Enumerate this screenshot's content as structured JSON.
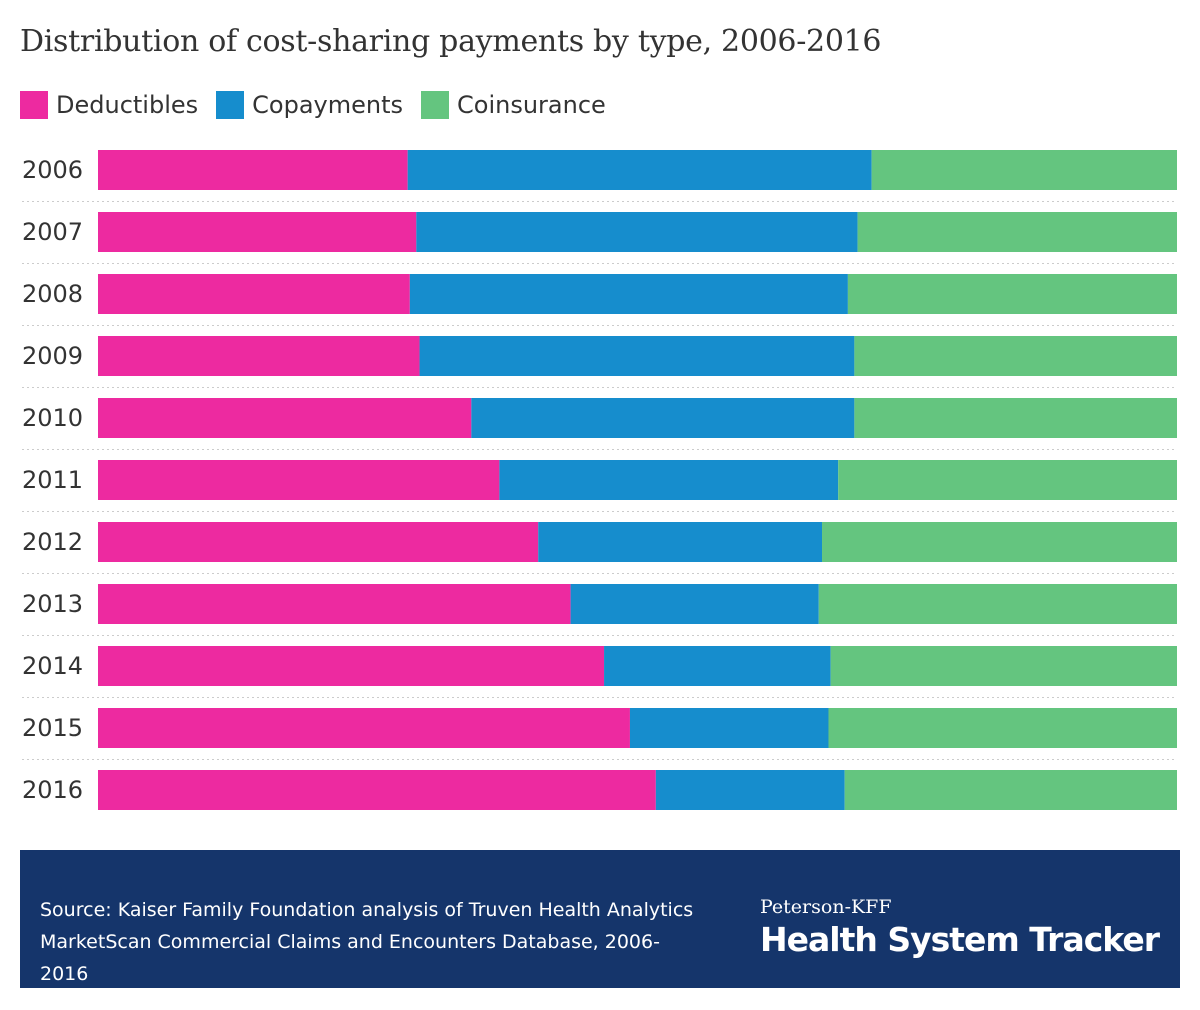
{
  "chart_data": {
    "type": "bar",
    "orientation": "horizontal",
    "stacked": true,
    "normalized": true,
    "title": "Distribution of cost-sharing payments by type, 2006-2016",
    "xlabel": "",
    "ylabel": "",
    "xlim": [
      0,
      100
    ],
    "categories": [
      "2006",
      "2007",
      "2008",
      "2009",
      "2010",
      "2011",
      "2012",
      "2013",
      "2014",
      "2015",
      "2016"
    ],
    "series": [
      {
        "name": "Deductibles",
        "color": "#ed2aa0",
        "values": [
          28.7,
          29.5,
          28.9,
          29.8,
          34.6,
          37.2,
          40.8,
          43.8,
          46.9,
          49.3,
          51.7
        ]
      },
      {
        "name": "Copayments",
        "color": "#168dcd",
        "values": [
          43.0,
          40.9,
          40.6,
          40.3,
          35.5,
          31.4,
          26.3,
          23.0,
          21.0,
          18.4,
          17.5
        ]
      },
      {
        "name": "Coinsurance",
        "color": "#64c57f",
        "values": [
          28.3,
          29.6,
          30.5,
          29.9,
          29.9,
          31.4,
          32.9,
          33.2,
          32.1,
          32.3,
          30.8
        ]
      }
    ],
    "legend": "top-left",
    "grid": false
  },
  "footer": {
    "source": "Source: Kaiser Family Foundation analysis of Truven Health Analytics MarketScan Commercial Claims and Encounters Database, 2006-2016",
    "brand_top": "Peterson-KFF",
    "brand_main": "Health System Tracker",
    "background": "#15356b"
  }
}
